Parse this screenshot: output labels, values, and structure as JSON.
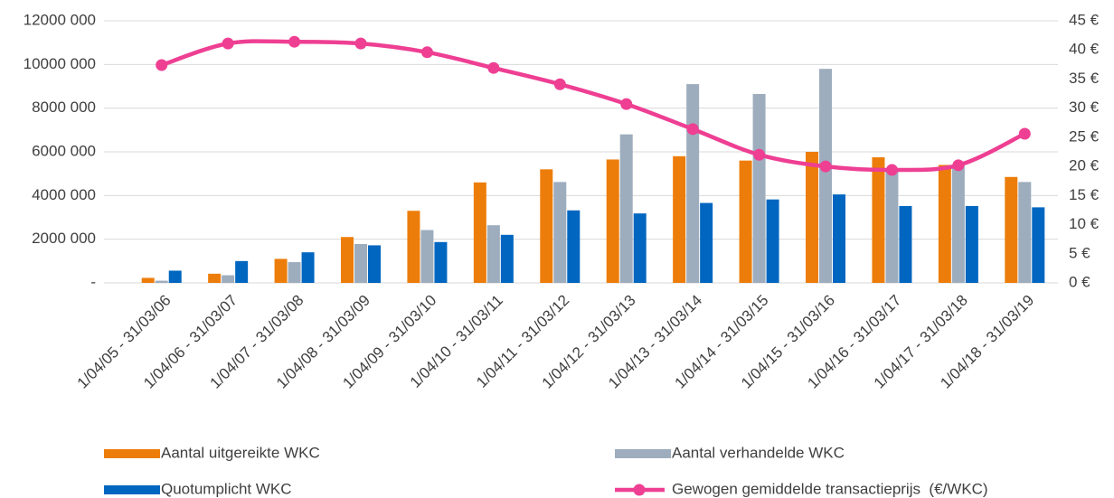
{
  "chart_data": {
    "type": "bar",
    "categories": [
      "1/04/05 - 31/03/06",
      "1/04/06 - 31/03/07",
      "1/04/07 - 31/03/08",
      "1/04/08 - 31/03/09",
      "1/04/09 - 31/03/10",
      "1/04/10 - 31/03/11",
      "1/04/11 - 31/03/12",
      "1/04/12 - 31/03/13",
      "1/04/13 - 31/03/14",
      "1/04/14 - 31/03/15",
      "1/04/15 - 31/03/16",
      "1/04/16 - 31/03/17",
      "1/04/17 - 31/03/18",
      "1/04/18 - 31/03/19"
    ],
    "series": [
      {
        "name": "Aantal uitgereikte WKC",
        "color": "#ed7d0a",
        "values": [
          230000,
          420000,
          1100000,
          2100000,
          3300000,
          4600000,
          5200000,
          5650000,
          5800000,
          5600000,
          6000000,
          5750000,
          5400000,
          4850000
        ]
      },
      {
        "name": "Aantal verhandelde WKC",
        "color": "#9eadbd",
        "values": [
          100000,
          350000,
          950000,
          1780000,
          2420000,
          2640000,
          4620000,
          6800000,
          9100000,
          8650000,
          9800000,
          5100000,
          5400000,
          4620000
        ]
      },
      {
        "name": "Quotumplicht WKC",
        "color": "#0066c0",
        "values": [
          560000,
          1000000,
          1400000,
          1720000,
          1870000,
          2200000,
          3320000,
          3180000,
          3660000,
          3820000,
          4050000,
          3520000,
          3520000,
          3460000
        ]
      },
      {
        "name": "Gewogen gemiddelde transactieprijs  (€/WKC)",
        "color": "#ee3f93",
        "type": "line",
        "axis": "y2",
        "values": [
          37.4,
          41.1,
          41.4,
          41.1,
          39.6,
          36.9,
          34.1,
          30.7,
          26.4,
          22.0,
          20.0,
          19.4,
          20.2,
          25.6
        ]
      }
    ],
    "ylim": [
      0,
      12000000
    ],
    "yticks": [
      {
        "value": 0,
        "label": "-"
      },
      {
        "value": 2000000,
        "label": "2000 000"
      },
      {
        "value": 4000000,
        "label": "4000 000"
      },
      {
        "value": 6000000,
        "label": "6000 000"
      },
      {
        "value": 8000000,
        "label": "8000 000"
      },
      {
        "value": 10000000,
        "label": "10000 000"
      },
      {
        "value": 12000000,
        "label": "12000 000"
      }
    ],
    "y2lim": [
      0,
      45
    ],
    "y2ticks": [
      {
        "value": 0,
        "label": "0 €"
      },
      {
        "value": 5,
        "label": "5 €"
      },
      {
        "value": 10,
        "label": "10 €"
      },
      {
        "value": 15,
        "label": "15 €"
      },
      {
        "value": 20,
        "label": "20 €"
      },
      {
        "value": 25,
        "label": "25 €"
      },
      {
        "value": 30,
        "label": "30 €"
      },
      {
        "value": 35,
        "label": "35 €"
      },
      {
        "value": 40,
        "label": "40 €"
      },
      {
        "value": 45,
        "label": "45 €"
      }
    ],
    "grid": true,
    "legend": "bottom"
  }
}
